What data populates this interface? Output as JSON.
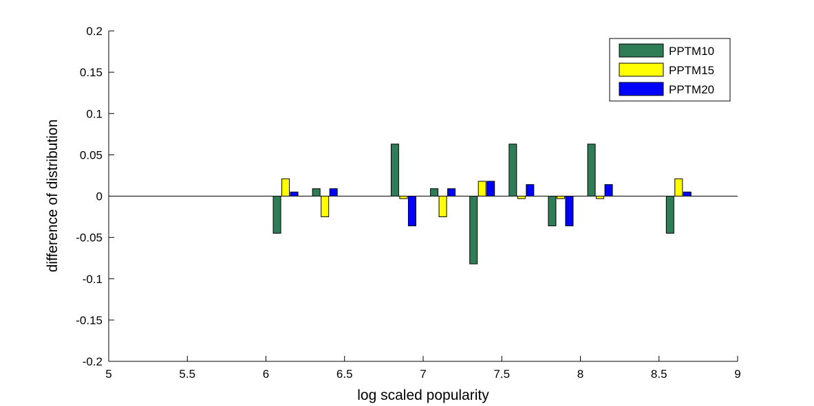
{
  "chart_data": {
    "type": "bar",
    "title": "",
    "xlabel": "log scaled popularity",
    "ylabel": "difference of distribution",
    "xlim": [
      5,
      9
    ],
    "ylim": [
      -0.2,
      0.2
    ],
    "xticks": [
      5,
      5.5,
      6,
      6.5,
      7,
      7.5,
      8,
      8.5,
      9
    ],
    "yticks": [
      0.2,
      0.15,
      0.1,
      0.05,
      0,
      -0.05,
      -0.1,
      -0.15,
      -0.2
    ],
    "x": [
      6.125,
      6.375,
      6.875,
      7.125,
      7.375,
      7.625,
      7.875,
      8.125,
      8.625
    ],
    "series": [
      {
        "name": "PPTM10",
        "color": "#2e7d57",
        "values": [
          -0.045,
          0.009,
          0.063,
          0.009,
          -0.082,
          0.063,
          -0.036,
          0.063,
          -0.045
        ]
      },
      {
        "name": "PPTM15",
        "color": "#ffff00",
        "values": [
          0.021,
          -0.025,
          -0.003,
          -0.025,
          0.018,
          -0.003,
          -0.003,
          -0.003,
          0.021
        ]
      },
      {
        "name": "PPTM20",
        "color": "#0000ff",
        "values": [
          0.005,
          0.009,
          -0.036,
          0.009,
          0.018,
          0.014,
          -0.036,
          0.014,
          0.005
        ]
      }
    ],
    "legend_position": "top-right",
    "grid": false
  }
}
